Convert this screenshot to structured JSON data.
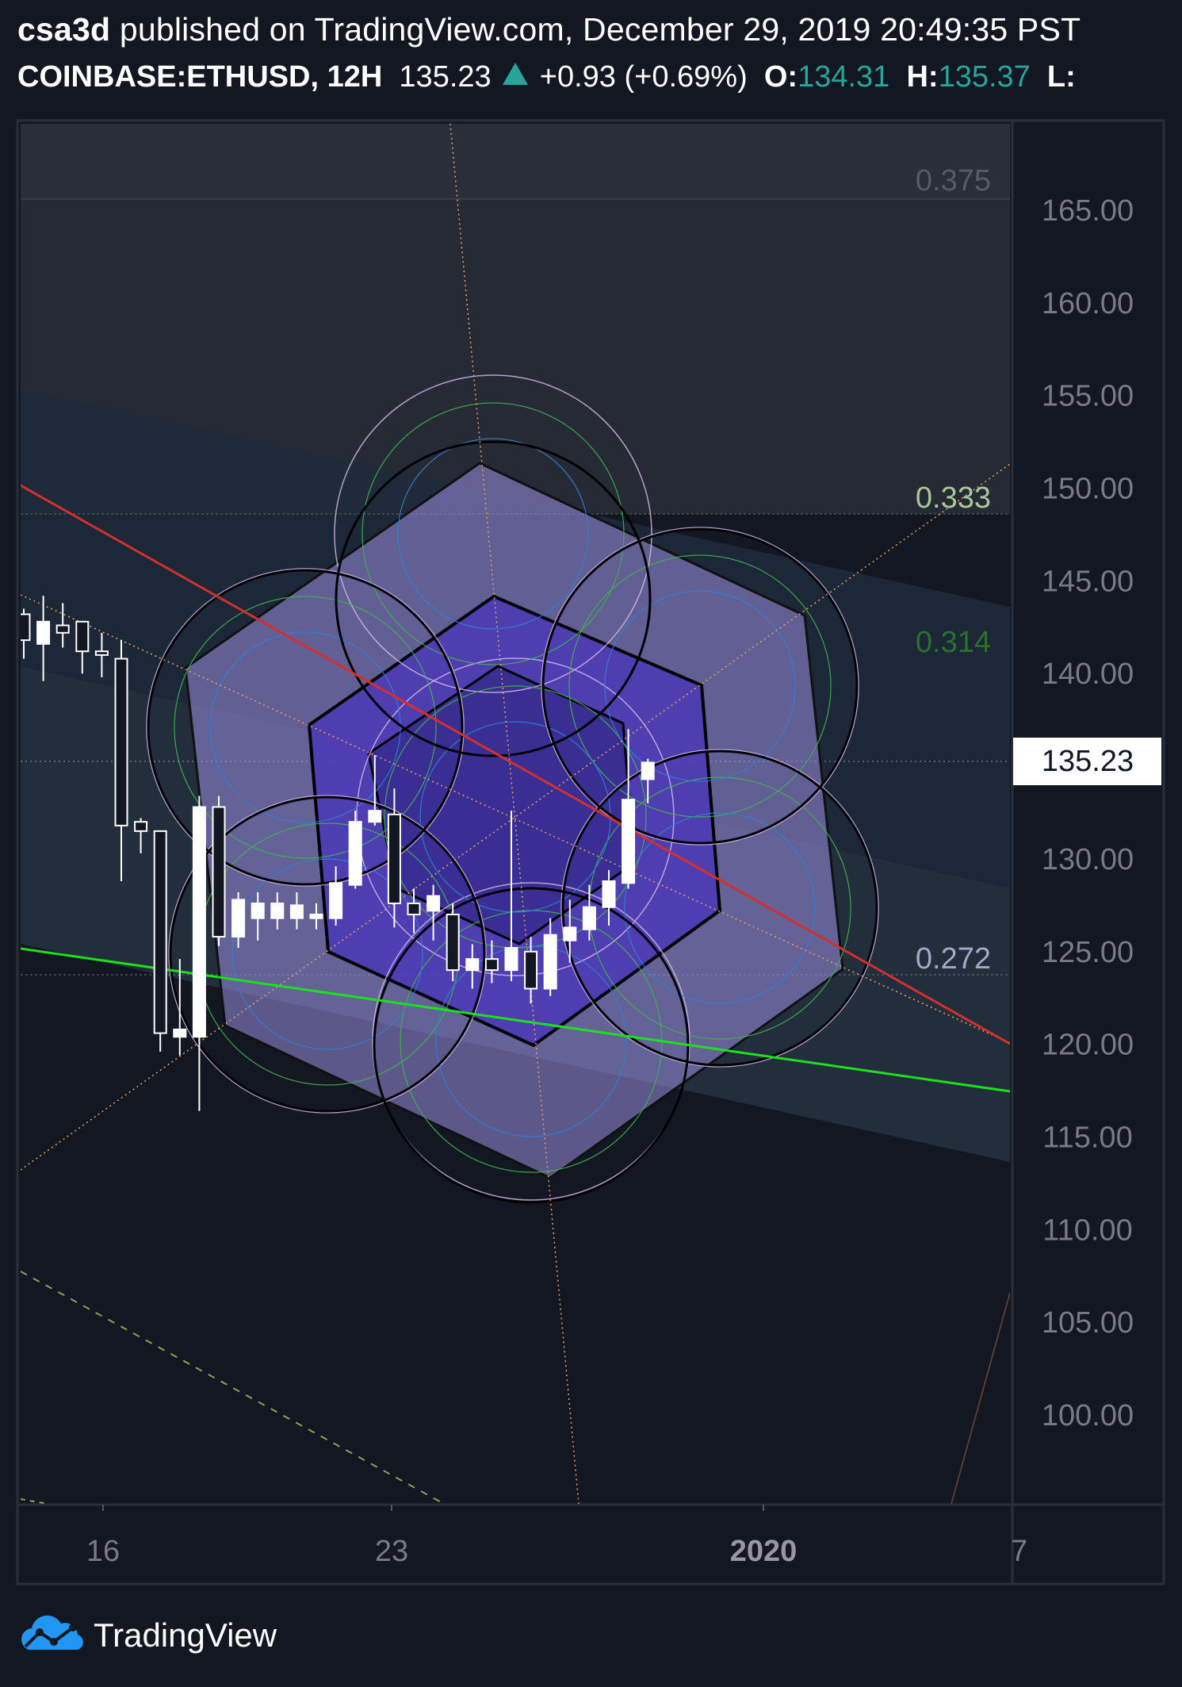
{
  "header": {
    "author": "csa3d",
    "published_text": "published on TradingView.com, December 29, 2019 20:49:35 PST",
    "symbol": "COINBASE:ETHUSD, 12H",
    "last": "135.23",
    "change": "+0.93 (+0.69%)",
    "open_label": "O:",
    "open": "134.31",
    "high_label": "H:",
    "high": "135.37",
    "low_label": "L:"
  },
  "footer": {
    "brand": "TradingView"
  },
  "colors": {
    "background": "#131722",
    "up": "#26a69a",
    "candle": "#ffffff",
    "red_line": "#e53935",
    "green_line": "#1de01d",
    "hexagon_fill": "#7d6fd6"
  },
  "chart_data": {
    "type": "candlestick",
    "x_ticks": [
      "16",
      "23",
      "2020",
      "7"
    ],
    "y_ticks": [
      "165.00",
      "160.00",
      "155.00",
      "150.00",
      "145.00",
      "140.00",
      "135.00",
      "130.00",
      "125.00",
      "120.00",
      "115.00",
      "110.00",
      "105.00",
      "100.00"
    ],
    "ylim": [
      95.3,
      167.5
    ],
    "last_price_label": "135.23",
    "fib_levels": [
      {
        "label": "0.375",
        "price": 166.5
      },
      {
        "label": "0.333",
        "price": 149.4
      },
      {
        "label": "0.314",
        "price": 141.6
      },
      {
        "label": "0.272",
        "price": 124.4
      }
    ],
    "candles": [
      {
        "o": 143.2,
        "h": 143.5,
        "l": 140.8,
        "c": 141.8
      },
      {
        "o": 141.6,
        "h": 144.2,
        "l": 139.6,
        "c": 142.8
      },
      {
        "o": 142.6,
        "h": 143.8,
        "l": 141.4,
        "c": 142.2
      },
      {
        "o": 142.8,
        "h": 142.8,
        "l": 140.0,
        "c": 141.2
      },
      {
        "o": 141.2,
        "h": 142.2,
        "l": 139.8,
        "c": 141.0
      },
      {
        "o": 140.8,
        "h": 141.8,
        "l": 128.8,
        "c": 131.8
      },
      {
        "o": 132.0,
        "h": 132.2,
        "l": 130.3,
        "c": 131.5
      },
      {
        "o": 131.5,
        "h": 131.5,
        "l": 119.6,
        "c": 120.6
      },
      {
        "o": 120.4,
        "h": 124.6,
        "l": 119.4,
        "c": 120.8
      },
      {
        "o": 120.4,
        "h": 133.4,
        "l": 116.4,
        "c": 132.8
      },
      {
        "o": 132.8,
        "h": 133.4,
        "l": 125.3,
        "c": 125.8
      },
      {
        "o": 125.8,
        "h": 128.2,
        "l": 125.2,
        "c": 127.8
      },
      {
        "o": 126.8,
        "h": 128.2,
        "l": 125.6,
        "c": 127.6
      },
      {
        "o": 126.8,
        "h": 128.2,
        "l": 126.2,
        "c": 127.6
      },
      {
        "o": 126.8,
        "h": 128.2,
        "l": 126.2,
        "c": 127.5
      },
      {
        "o": 126.8,
        "h": 127.6,
        "l": 126.2,
        "c": 127.0
      },
      {
        "o": 126.8,
        "h": 129.6,
        "l": 126.4,
        "c": 128.7
      },
      {
        "o": 128.6,
        "h": 132.6,
        "l": 128.4,
        "c": 132.0
      },
      {
        "o": 132.0,
        "h": 135.6,
        "l": 131.8,
        "c": 132.6
      },
      {
        "o": 132.4,
        "h": 133.8,
        "l": 126.3,
        "c": 127.6
      },
      {
        "o": 127.6,
        "h": 128.4,
        "l": 126.0,
        "c": 127.0
      },
      {
        "o": 127.2,
        "h": 128.6,
        "l": 125.6,
        "c": 128.0
      },
      {
        "o": 127.0,
        "h": 127.6,
        "l": 123.4,
        "c": 124.0
      },
      {
        "o": 124.0,
        "h": 125.4,
        "l": 123.0,
        "c": 124.6
      },
      {
        "o": 124.6,
        "h": 125.6,
        "l": 123.3,
        "c": 124.0
      },
      {
        "o": 124.0,
        "h": 132.6,
        "l": 123.4,
        "c": 125.2
      },
      {
        "o": 125.0,
        "h": 125.8,
        "l": 122.2,
        "c": 123.0
      },
      {
        "o": 123.0,
        "h": 126.8,
        "l": 122.6,
        "c": 125.9
      },
      {
        "o": 125.6,
        "h": 127.8,
        "l": 124.4,
        "c": 126.3
      },
      {
        "o": 126.2,
        "h": 128.6,
        "l": 125.6,
        "c": 127.4
      },
      {
        "o": 127.4,
        "h": 129.4,
        "l": 126.4,
        "c": 128.8
      },
      {
        "o": 128.7,
        "h": 137.0,
        "l": 128.4,
        "c": 133.2
      },
      {
        "o": 134.3,
        "h": 135.4,
        "l": 133.0,
        "c": 135.2
      }
    ]
  }
}
